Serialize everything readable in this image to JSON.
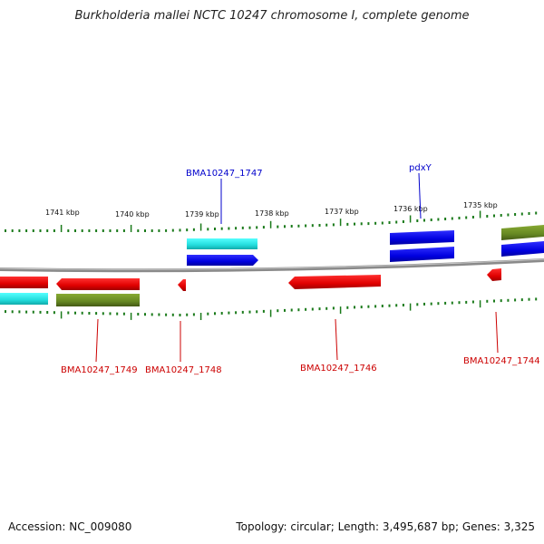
{
  "title": "Burkholderia mallei NCTC 10247 chromosome I, complete genome",
  "footer": {
    "accession": "Accession: NC_009080",
    "summary": "Topology: circular; Length: 3,495,687 bp; Genes: 3,325"
  },
  "colors": {
    "backbone": "#888888",
    "ticks": "#1a7a1a",
    "cds_red": "#e00000",
    "cds_blue": "#0000e0",
    "cds_cyan": "#22dddd",
    "cds_olive": "#668822",
    "label_red": "#cc0000",
    "label_blue": "#0000cc"
  },
  "scale_labels": [
    "1741 kbp",
    "1740 kbp",
    "1739 kbp",
    "1738 kbp",
    "1737 kbp",
    "1736 kbp",
    "1735 kbp"
  ],
  "gene_labels": {
    "bma1747": "BMA10247_1747",
    "pdxy": "pdxY",
    "bma1749": "BMA10247_1749",
    "bma1748": "BMA10247_1748",
    "bma1746": "BMA10247_1746",
    "bma1744": "BMA10247_1744"
  }
}
